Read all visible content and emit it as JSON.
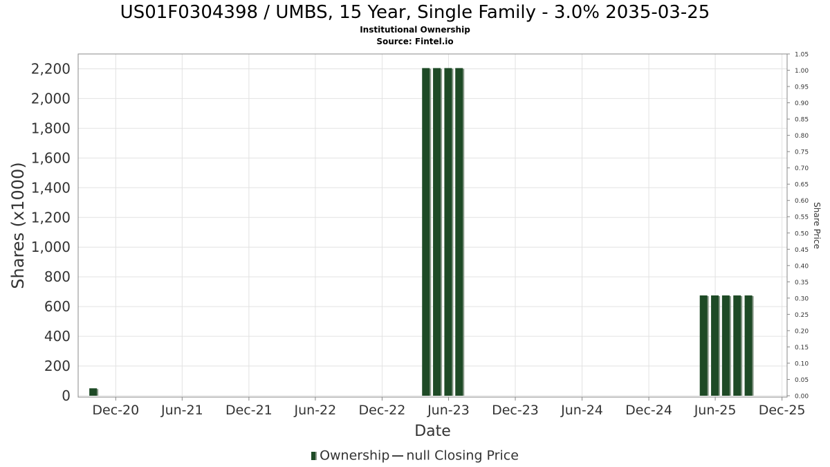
{
  "header": {
    "title": "US01F0304398 / UMBS, 15 Year, Single Family - 3.0% 2035-03-25",
    "subtitle": "Institutional Ownership",
    "source": "Source: Fintel.io"
  },
  "legend": {
    "ownership": "Ownership",
    "price": "null Closing Price"
  },
  "colors": {
    "bar": "#1e4a26",
    "bar_shadow": "#8a9a8a",
    "grid": "#e2e2e2",
    "axis": "#888888"
  },
  "chart_data": {
    "type": "bar",
    "xlabel": "Date",
    "ylabel": "Shares (x1000)",
    "y2label": "Share Price",
    "ylim": [
      0,
      2300
    ],
    "y2lim": [
      0,
      1.05
    ],
    "xlim": [
      "2020-08-20",
      "2025-12-15"
    ],
    "grid": true,
    "legend_position": "bottom",
    "y_ticks": [
      {
        "v": 0,
        "label": "0"
      },
      {
        "v": 200,
        "label": "200"
      },
      {
        "v": 400,
        "label": "400"
      },
      {
        "v": 600,
        "label": "600"
      },
      {
        "v": 800,
        "label": "800"
      },
      {
        "v": 1000,
        "label": "1,000"
      },
      {
        "v": 1200,
        "label": "1,200"
      },
      {
        "v": 1400,
        "label": "1,400"
      },
      {
        "v": 1600,
        "label": "1,600"
      },
      {
        "v": 1800,
        "label": "1,800"
      },
      {
        "v": 2000,
        "label": "2,000"
      },
      {
        "v": 2200,
        "label": "2,200"
      }
    ],
    "y2_ticks": [
      "0.00",
      "0.05",
      "0.10",
      "0.15",
      "0.20",
      "0.25",
      "0.30",
      "0.35",
      "0.40",
      "0.45",
      "0.50",
      "0.55",
      "0.60",
      "0.65",
      "0.70",
      "0.75",
      "0.80",
      "0.85",
      "0.90",
      "0.95",
      "1.00",
      "1.05"
    ],
    "x_ticks": [
      {
        "date": "2020-12-01",
        "label": "Dec-20"
      },
      {
        "date": "2021-06-01",
        "label": "Jun-21"
      },
      {
        "date": "2021-12-01",
        "label": "Dec-21"
      },
      {
        "date": "2022-06-01",
        "label": "Jun-22"
      },
      {
        "date": "2022-12-01",
        "label": "Dec-22"
      },
      {
        "date": "2023-06-01",
        "label": "Jun-23"
      },
      {
        "date": "2023-12-01",
        "label": "Dec-23"
      },
      {
        "date": "2024-06-01",
        "label": "Jun-24"
      },
      {
        "date": "2024-12-01",
        "label": "Dec-24"
      },
      {
        "date": "2025-06-01",
        "label": "Jun-25"
      },
      {
        "date": "2025-12-01",
        "label": "Dec-25"
      }
    ],
    "series": [
      {
        "name": "Ownership",
        "points": [
          {
            "date": "2020-09-30",
            "value": 50
          },
          {
            "date": "2023-03-31",
            "value": 2205
          },
          {
            "date": "2023-04-30",
            "value": 2205
          },
          {
            "date": "2023-05-31",
            "value": 2205
          },
          {
            "date": "2023-06-30",
            "value": 2205
          },
          {
            "date": "2025-04-30",
            "value": 675
          },
          {
            "date": "2025-05-31",
            "value": 675
          },
          {
            "date": "2025-06-30",
            "value": 675
          },
          {
            "date": "2025-07-31",
            "value": 675
          },
          {
            "date": "2025-08-31",
            "value": 675
          }
        ]
      }
    ]
  }
}
